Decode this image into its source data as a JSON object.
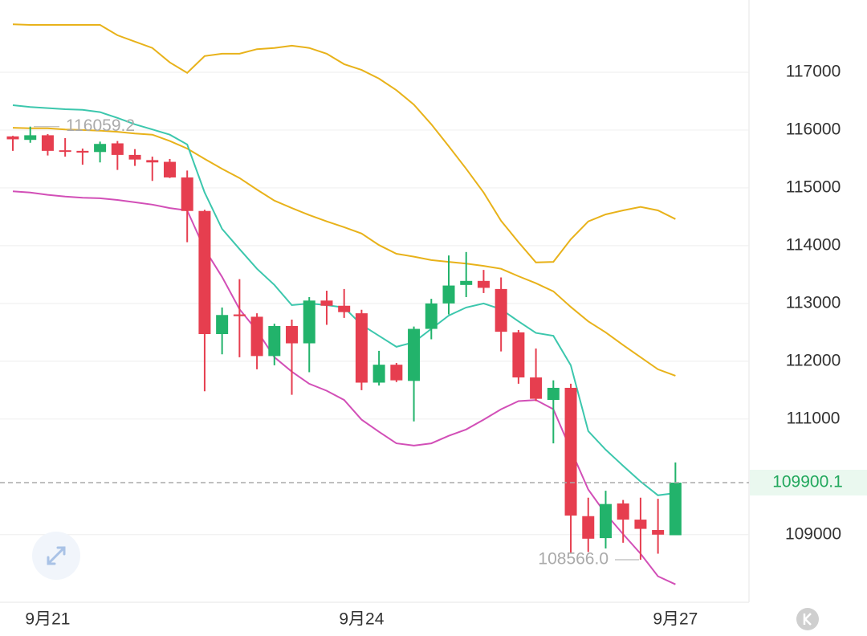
{
  "chart_data": {
    "type": "candlestick",
    "categories": [
      null,
      null,
      "9月21",
      null,
      null,
      null,
      null,
      null,
      null,
      null,
      null,
      null,
      null,
      null,
      null,
      null,
      null,
      null,
      null,
      null,
      "9月24",
      null,
      null,
      null,
      null,
      null,
      null,
      null,
      null,
      null,
      null,
      null,
      null,
      null,
      null,
      null,
      null,
      null,
      "9月27"
    ],
    "open": [
      115890,
      115830,
      115910,
      115650,
      115640,
      115620,
      115770,
      115570,
      115480,
      115450,
      115180,
      114600,
      112470,
      112810,
      112770,
      112090,
      112610,
      112310,
      113050,
      112960,
      112830,
      111630,
      111940,
      111660,
      112560,
      113000,
      113320,
      113390,
      113250,
      112500,
      111720,
      111330,
      111540,
      109320,
      108940,
      109540,
      109260,
      109080,
      108990
    ],
    "high": [
      115900,
      116059.2,
      115930,
      115860,
      115680,
      115800,
      115810,
      115670,
      115540,
      115500,
      115300,
      114620,
      112930,
      113420,
      112830,
      112650,
      112720,
      113110,
      113220,
      113250,
      112890,
      112180,
      111970,
      112600,
      113080,
      113830,
      113890,
      113580,
      113450,
      112540,
      112220,
      111670,
      111610,
      109640,
      109760,
      109600,
      109640,
      109620,
      110250
    ],
    "low": [
      115640,
      115780,
      115560,
      115540,
      115400,
      115440,
      115310,
      115380,
      115120,
      115170,
      114060,
      111480,
      112120,
      112070,
      111860,
      111930,
      111420,
      111810,
      112630,
      112750,
      111500,
      111580,
      111640,
      110960,
      112380,
      112810,
      113110,
      113180,
      112170,
      111610,
      111310,
      110580,
      108670,
      108700,
      108760,
      108860,
      108566.0,
      108670,
      108990
    ],
    "close": [
      115840,
      115910,
      115640,
      115630,
      115610,
      115760,
      115570,
      115490,
      115440,
      115180,
      114600,
      112470,
      112800,
      112780,
      112090,
      112610,
      112310,
      113050,
      112960,
      112850,
      111630,
      111940,
      111670,
      112560,
      113000,
      113310,
      113390,
      113270,
      112510,
      111720,
      111350,
      111540,
      109330,
      108930,
      109530,
      109260,
      109100,
      109000,
      109900.1
    ],
    "up_color": "#22b36b",
    "down_color": "#e63e4f",
    "overlays": [
      {
        "color": "#e8b21a",
        "values": [
          117830,
          117820,
          117820,
          117820,
          117820,
          117820,
          117640,
          117530,
          117420,
          117170,
          116990,
          117280,
          117320,
          117320,
          117400,
          117420,
          117460,
          117420,
          117320,
          117140,
          117040,
          116890,
          116690,
          116440,
          116100,
          115720,
          115330,
          114920,
          114430,
          114060,
          113710,
          113720,
          114110,
          114420,
          114540,
          114610,
          114670,
          114610,
          114460
        ]
      },
      {
        "color": "#e8b21a",
        "values": [
          116040,
          116030,
          116030,
          116010,
          116000,
          115990,
          115970,
          115940,
          115920,
          115810,
          115680,
          115500,
          115330,
          115170,
          114970,
          114780,
          114650,
          114530,
          114420,
          114320,
          114210,
          114010,
          113860,
          113810,
          113750,
          113720,
          113690,
          113650,
          113600,
          113470,
          113350,
          113210,
          112940,
          112690,
          112500,
          112280,
          112070,
          111860,
          111750
        ]
      },
      {
        "color": "#3cc7ad",
        "values": [
          116430,
          116400,
          116380,
          116360,
          116350,
          116310,
          116210,
          116100,
          116010,
          115920,
          115750,
          114920,
          114290,
          113940,
          113600,
          113320,
          112970,
          113000,
          112970,
          112930,
          112630,
          112440,
          112250,
          112330,
          112560,
          112790,
          112930,
          113000,
          112900,
          112690,
          112490,
          112440,
          111930,
          110790,
          110470,
          110190,
          109920,
          109680,
          109720
        ]
      },
      {
        "color": "#d24fb7",
        "values": [
          114940,
          114920,
          114880,
          114850,
          114830,
          114820,
          114790,
          114750,
          114710,
          114650,
          114610,
          113940,
          113460,
          112900,
          112530,
          112070,
          111820,
          111610,
          111490,
          111330,
          110990,
          110780,
          110580,
          110540,
          110580,
          110710,
          110820,
          110990,
          111170,
          111310,
          111330,
          111170,
          110470,
          109780,
          109360,
          109010,
          108670,
          108280,
          108140
        ]
      }
    ],
    "ylim": [
      107830,
      118250
    ],
    "yticks": [
      109000,
      111000,
      112000,
      113000,
      114000,
      115000,
      116000,
      117000
    ],
    "grid": true,
    "annotations": {
      "high": 116059.2,
      "low": {
        "value": 108566,
        "label": "108566.0"
      },
      "last_price": 109900.1
    }
  }
}
